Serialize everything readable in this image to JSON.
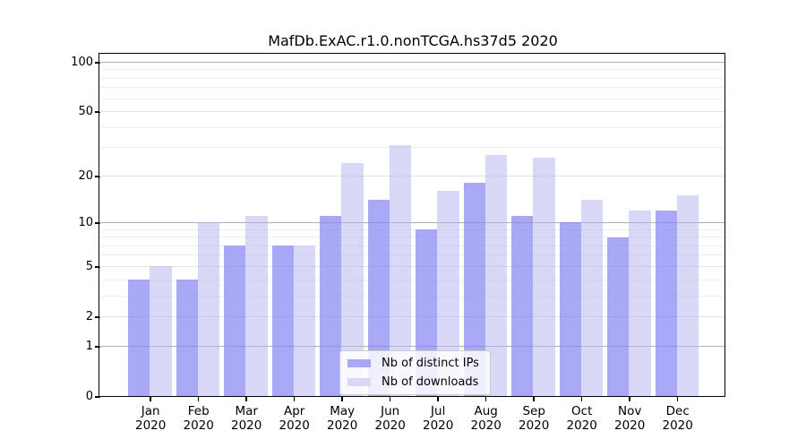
{
  "chart_data": {
    "type": "bar",
    "title": "MafDb.ExAC.r1.0.nonTCGA.hs37d5 2020",
    "categories": [
      "Jan 2020",
      "Feb 2020",
      "Mar 2020",
      "Apr 2020",
      "May 2020",
      "Jun 2020",
      "Jul 2020",
      "Aug 2020",
      "Sep 2020",
      "Oct 2020",
      "Nov 2020",
      "Dec 2020"
    ],
    "series": [
      {
        "name": "Nb of distinct IPs",
        "color": "#a8a8f5",
        "fill": "rgba(134,134,244,0.72)",
        "values": [
          4,
          4,
          7,
          7,
          11,
          14,
          9,
          18,
          11,
          10,
          8,
          12
        ]
      },
      {
        "name": "Nb of downloads",
        "color": "#d9d9f7",
        "fill": "rgba(178,178,239,0.5)",
        "values": [
          5,
          10,
          11,
          7,
          24,
          31,
          16,
          27,
          26,
          14,
          12,
          15
        ]
      }
    ],
    "xlabel": "",
    "ylabel": "",
    "y_scale": "log1p",
    "ylim": [
      0,
      112
    ],
    "y_ticks": [
      0,
      1,
      2,
      5,
      10,
      20,
      50,
      100
    ],
    "y_minor_gridlines": [
      3,
      4,
      6,
      7,
      8,
      9,
      30,
      40,
      60,
      70,
      80,
      90
    ],
    "grid": true,
    "legend_position": "lower center"
  },
  "colors": {
    "background": "#ffffff",
    "axis": "#000000",
    "grid_major": "#b0b0b0",
    "grid_mid": "#e2e2e2",
    "grid_minor": "#efefef",
    "legend_border": "#cccccc"
  }
}
